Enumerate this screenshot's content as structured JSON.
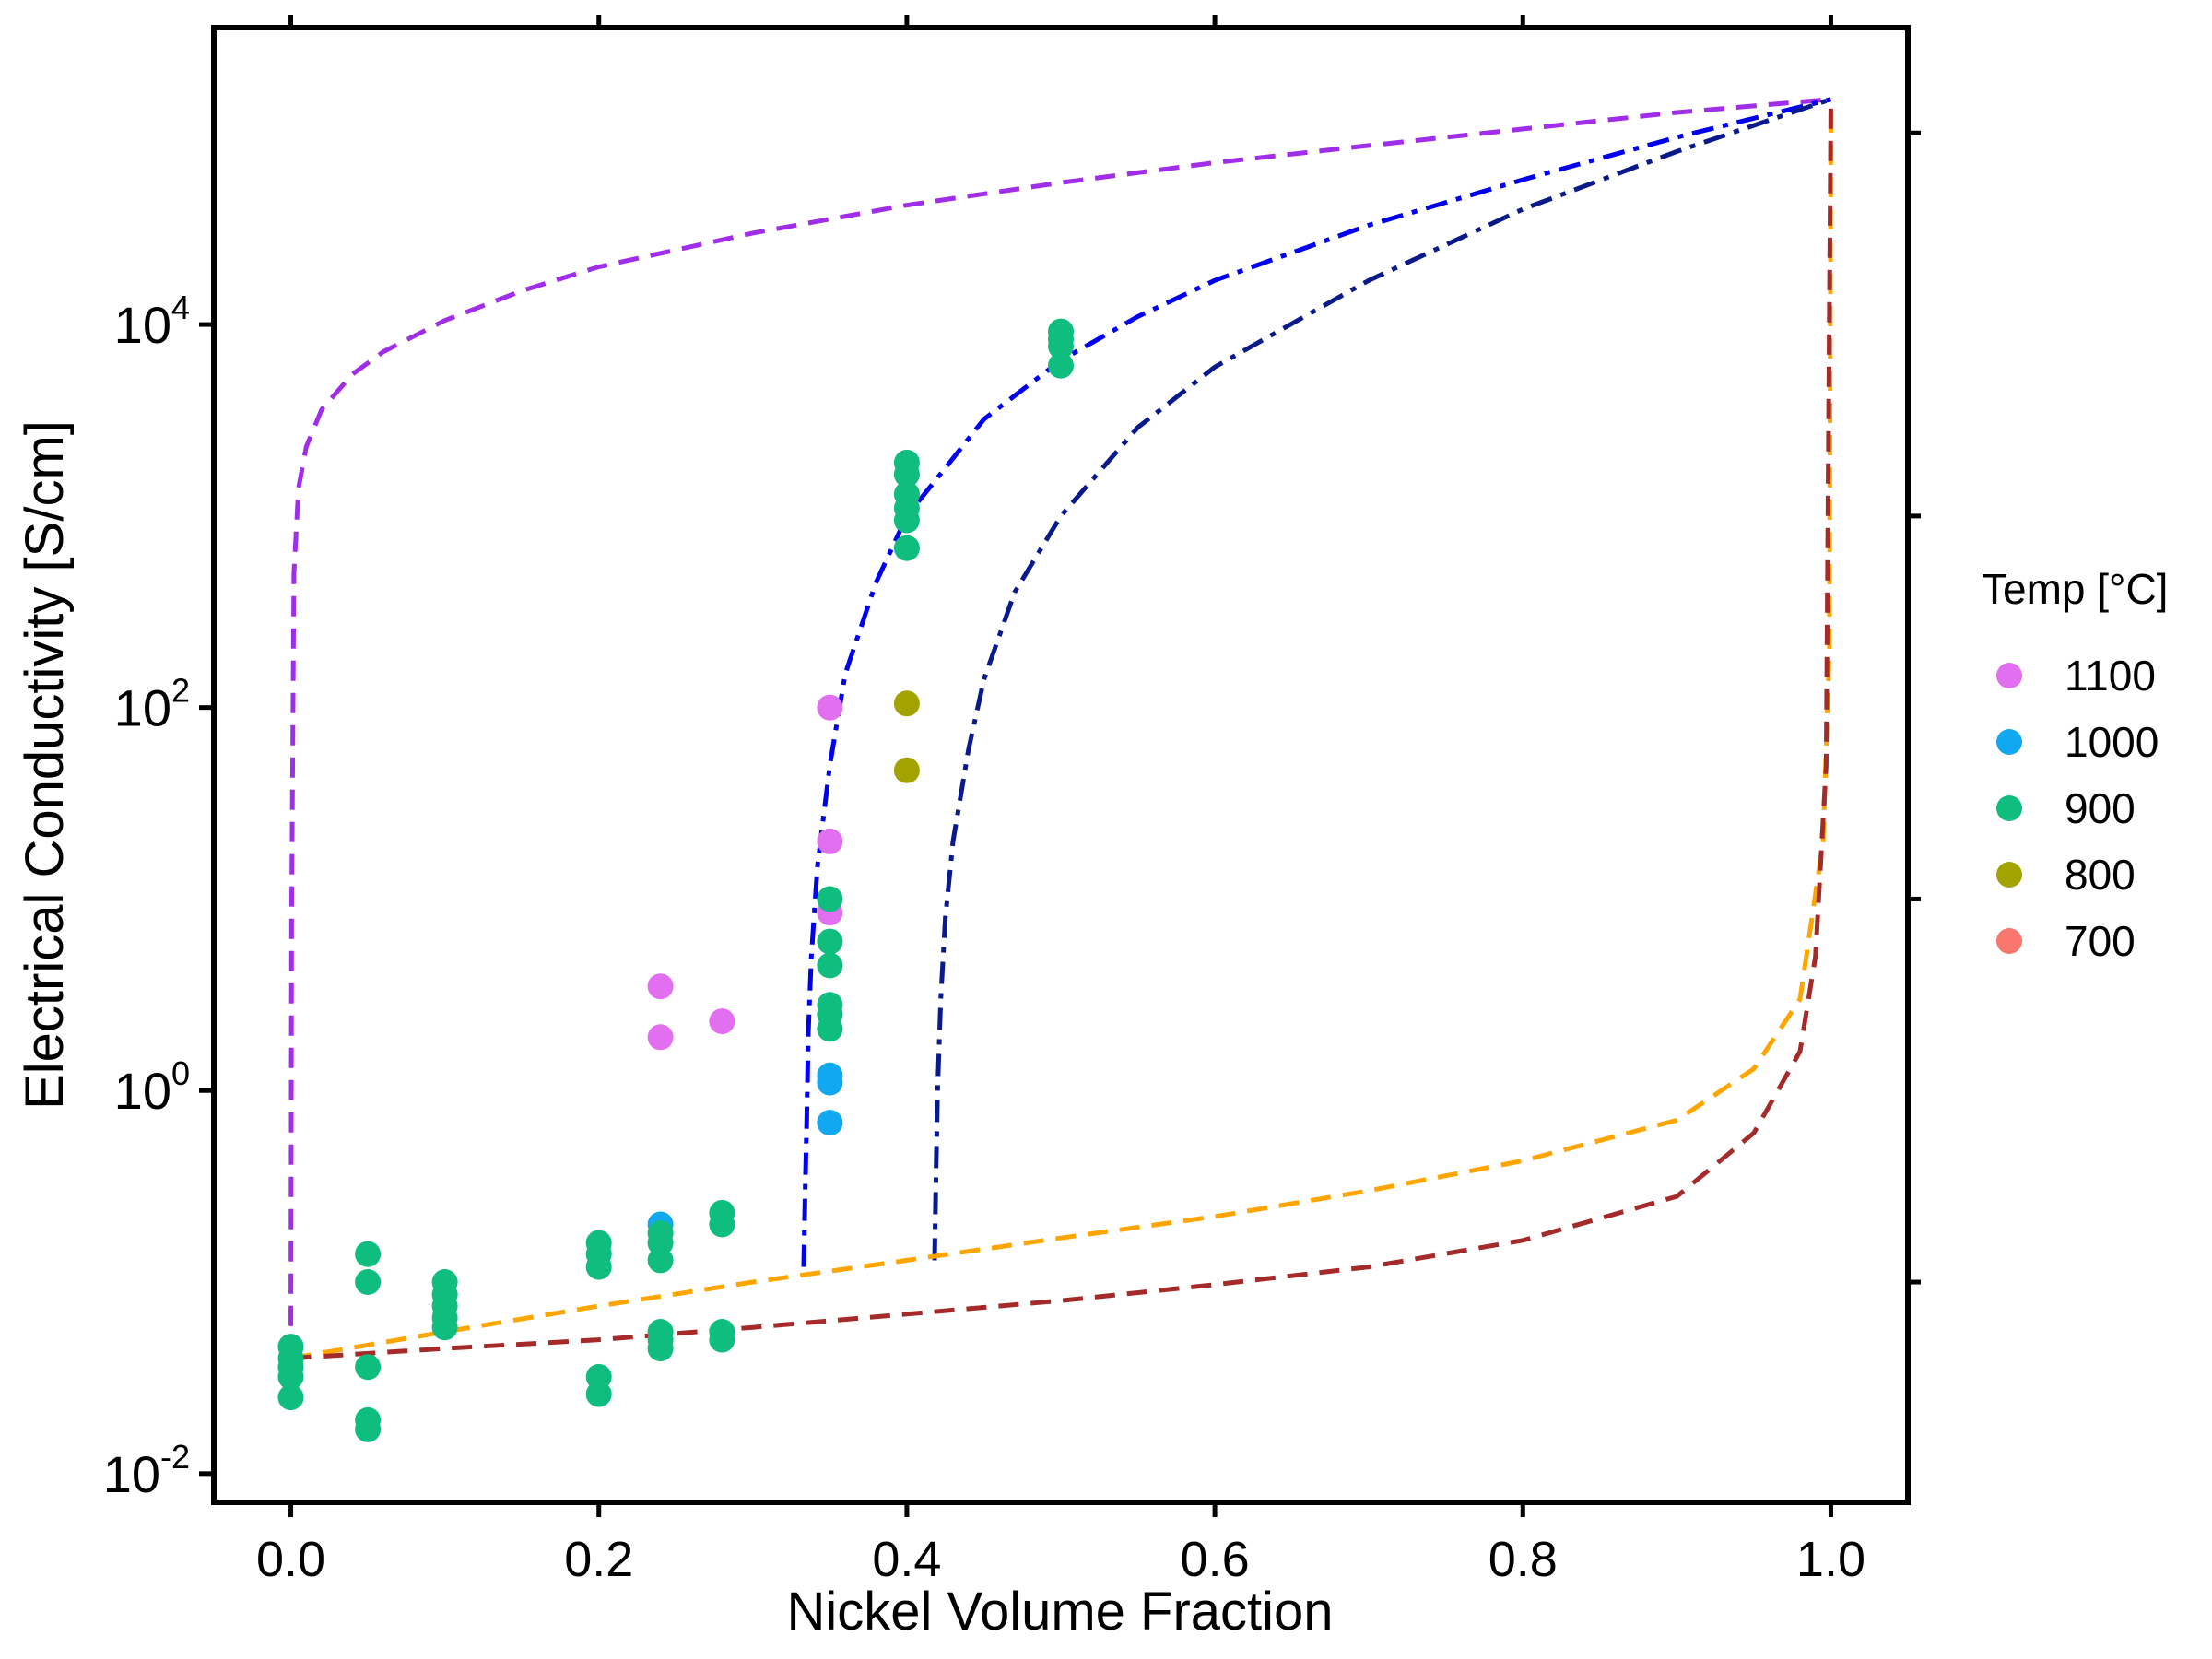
{
  "chart_data": {
    "type": "scatter",
    "xlabel": "Nickel Volume Fraction",
    "ylabel": "Electrical Conductivity [S/cm]",
    "xlim": [
      -0.05,
      1.05
    ],
    "ylog": true,
    "ylim_log10": [
      -2.15,
      5.55
    ],
    "x_ticks": [
      0.0,
      0.2,
      0.4,
      0.6,
      0.8,
      1.0
    ],
    "x_tick_labels": [
      "0.0",
      "0.2",
      "0.4",
      "0.6",
      "0.8",
      "1.0"
    ],
    "y_ticks_log10": [
      -2,
      0,
      2,
      4
    ],
    "y_tick_labels": [
      {
        "base": "10",
        "exp": "-2"
      },
      {
        "base": "10",
        "exp": "0"
      },
      {
        "base": "10",
        "exp": "2"
      },
      {
        "base": "10",
        "exp": "4"
      }
    ],
    "grid": false,
    "legend": {
      "title": "Temp [°C]",
      "placement": "right",
      "entries": [
        {
          "label": "1100",
          "color": "#e26ff0"
        },
        {
          "label": "1000",
          "color": "#10a8f0"
        },
        {
          "label": "900",
          "color": "#0fbd7e"
        },
        {
          "label": "800",
          "color": "#a3a300"
        },
        {
          "label": "700",
          "color": "#f8766d"
        }
      ]
    },
    "series": [
      {
        "name": "1100",
        "color": "#e26ff0",
        "points": [
          [
            0.24,
            3.5
          ],
          [
            0.24,
            1.9
          ],
          [
            0.28,
            2.3
          ],
          [
            0.35,
            100
          ],
          [
            0.35,
            20
          ],
          [
            0.35,
            8.5
          ]
        ]
      },
      {
        "name": "1000",
        "color": "#10a8f0",
        "points": [
          [
            0.24,
            0.2
          ],
          [
            0.35,
            1.2
          ],
          [
            0.35,
            1.1
          ],
          [
            0.35,
            0.68
          ]
        ]
      },
      {
        "name": "900",
        "color": "#0fbd7e",
        "points": [
          [
            0.0,
            0.046
          ],
          [
            0.0,
            0.04
          ],
          [
            0.0,
            0.036
          ],
          [
            0.0,
            0.032
          ],
          [
            0.0,
            0.025
          ],
          [
            0.05,
            0.14
          ],
          [
            0.05,
            0.1
          ],
          [
            0.05,
            0.036
          ],
          [
            0.05,
            0.019
          ],
          [
            0.05,
            0.017
          ],
          [
            0.1,
            0.1
          ],
          [
            0.1,
            0.086
          ],
          [
            0.1,
            0.075
          ],
          [
            0.1,
            0.065
          ],
          [
            0.1,
            0.058
          ],
          [
            0.2,
            0.16
          ],
          [
            0.2,
            0.14
          ],
          [
            0.2,
            0.12
          ],
          [
            0.2,
            0.032
          ],
          [
            0.2,
            0.026
          ],
          [
            0.24,
            0.18
          ],
          [
            0.24,
            0.16
          ],
          [
            0.24,
            0.13
          ],
          [
            0.24,
            0.055
          ],
          [
            0.24,
            0.05
          ],
          [
            0.24,
            0.045
          ],
          [
            0.28,
            0.23
          ],
          [
            0.28,
            0.2
          ],
          [
            0.28,
            0.055
          ],
          [
            0.28,
            0.05
          ],
          [
            0.35,
            10
          ],
          [
            0.35,
            6
          ],
          [
            0.35,
            4.5
          ],
          [
            0.35,
            2.8
          ],
          [
            0.35,
            2.5
          ],
          [
            0.35,
            2.1
          ],
          [
            0.4,
            1900
          ],
          [
            0.4,
            1650
          ],
          [
            0.4,
            1300
          ],
          [
            0.4,
            1100
          ],
          [
            0.4,
            950
          ],
          [
            0.4,
            680
          ],
          [
            0.5,
            9200
          ],
          [
            0.5,
            8400
          ],
          [
            0.5,
            7700
          ],
          [
            0.5,
            6100
          ]
        ]
      },
      {
        "name": "800",
        "color": "#a3a300",
        "points": [
          [
            0.4,
            105
          ],
          [
            0.4,
            47
          ]
        ]
      }
    ],
    "curves": [
      {
        "color": "#a02ee8",
        "dash": "dash",
        "points": [
          [
            0.0,
            0.04
          ],
          [
            0.0005,
            8
          ],
          [
            0.002,
            500
          ],
          [
            0.005,
            1400
          ],
          [
            0.01,
            2300
          ],
          [
            0.02,
            3600
          ],
          [
            0.04,
            5500
          ],
          [
            0.06,
            7200
          ],
          [
            0.1,
            10500
          ],
          [
            0.15,
            15000
          ],
          [
            0.2,
            20000
          ],
          [
            0.3,
            30000
          ],
          [
            0.4,
            42000
          ],
          [
            0.5,
            55000
          ],
          [
            0.6,
            70000
          ],
          [
            0.7,
            86000
          ],
          [
            0.8,
            105000
          ],
          [
            0.9,
            128000
          ],
          [
            1.0,
            150000
          ]
        ]
      },
      {
        "color": "#0000ee",
        "dash": "dashdot",
        "points": [
          [
            0.333,
            0.12
          ],
          [
            0.334,
            0.3
          ],
          [
            0.335,
            0.7
          ],
          [
            0.336,
            2
          ],
          [
            0.338,
            5
          ],
          [
            0.342,
            15
          ],
          [
            0.35,
            50
          ],
          [
            0.36,
            150
          ],
          [
            0.38,
            450
          ],
          [
            0.4,
            1000
          ],
          [
            0.43,
            2000
          ],
          [
            0.45,
            3200
          ],
          [
            0.5,
            6500
          ],
          [
            0.55,
            11000
          ],
          [
            0.6,
            17000
          ],
          [
            0.7,
            33000
          ],
          [
            0.8,
            57000
          ],
          [
            0.9,
            95000
          ],
          [
            1.0,
            150000
          ]
        ]
      },
      {
        "color": "#0a1a8a",
        "dash": "dashdot",
        "points": [
          [
            0.418,
            0.13
          ],
          [
            0.419,
            0.4
          ],
          [
            0.42,
            1
          ],
          [
            0.422,
            3
          ],
          [
            0.425,
            8
          ],
          [
            0.43,
            20
          ],
          [
            0.44,
            60
          ],
          [
            0.45,
            140
          ],
          [
            0.47,
            400
          ],
          [
            0.5,
            1000
          ],
          [
            0.55,
            2900
          ],
          [
            0.6,
            6000
          ],
          [
            0.7,
            17000
          ],
          [
            0.8,
            40000
          ],
          [
            0.9,
            80000
          ],
          [
            1.0,
            150000
          ]
        ]
      },
      {
        "color": "#ffa500",
        "dash": "dash",
        "points": [
          [
            0.0,
            0.04
          ],
          [
            0.1,
            0.055
          ],
          [
            0.2,
            0.075
          ],
          [
            0.3,
            0.1
          ],
          [
            0.4,
            0.13
          ],
          [
            0.5,
            0.17
          ],
          [
            0.6,
            0.22
          ],
          [
            0.7,
            0.3
          ],
          [
            0.8,
            0.43
          ],
          [
            0.9,
            0.7
          ],
          [
            0.95,
            1.3
          ],
          [
            0.98,
            3
          ],
          [
            0.995,
            20
          ],
          [
            0.999,
            200
          ],
          [
            1.0,
            150000
          ]
        ]
      },
      {
        "color": "#a52a2a",
        "dash": "dash",
        "points": [
          [
            0.0,
            0.04
          ],
          [
            0.1,
            0.045
          ],
          [
            0.2,
            0.05
          ],
          [
            0.3,
            0.058
          ],
          [
            0.4,
            0.068
          ],
          [
            0.5,
            0.08
          ],
          [
            0.6,
            0.097
          ],
          [
            0.7,
            0.12
          ],
          [
            0.8,
            0.165
          ],
          [
            0.9,
            0.28
          ],
          [
            0.95,
            0.6
          ],
          [
            0.98,
            1.6
          ],
          [
            0.99,
            5
          ],
          [
            0.997,
            50
          ],
          [
            1.0,
            150000
          ]
        ]
      }
    ]
  }
}
